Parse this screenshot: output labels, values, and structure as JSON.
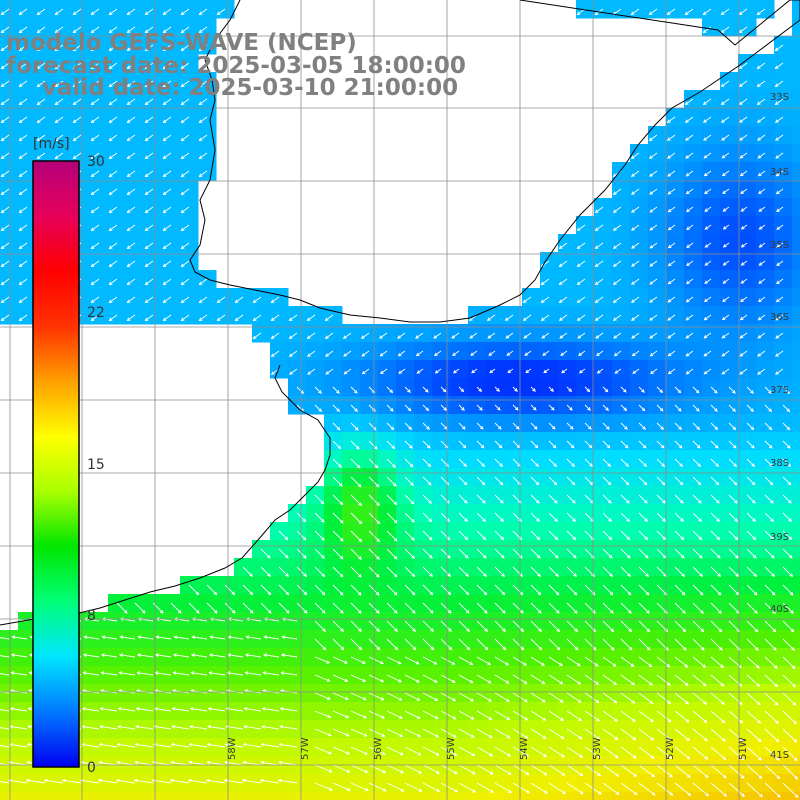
{
  "header": {
    "model": "modelo GEFS-WAVE (NCEP)",
    "forecast": "forecast date: 2025-03-05 18:00:00",
    "valid": "valid date: 2025-03-10 21:00:00"
  },
  "colorbar": {
    "unit": "[m/s]",
    "ticks": [
      {
        "label": "30",
        "value": 30
      },
      {
        "label": "22",
        "value": 22
      },
      {
        "label": "15",
        "value": 15
      },
      {
        "label": "8",
        "value": 8
      },
      {
        "label": "0",
        "value": 0
      }
    ],
    "colors": [
      "#0000f0",
      "#0078ff",
      "#00e6ff",
      "#00ff78",
      "#00e600",
      "#aaff00",
      "#ffff00",
      "#ffa000",
      "#ff3200",
      "#ff0000",
      "#e6005a",
      "#b4007a"
    ]
  },
  "lat_labels": [
    "33S",
    "34S",
    "35S",
    "36S",
    "37S",
    "38S",
    "39S",
    "40S",
    "41S"
  ],
  "lon_labels": [
    "58W",
    "57W",
    "56W",
    "55W",
    "54W",
    "53W",
    "52W",
    "51W"
  ],
  "field": {
    "quantity": "wind speed",
    "units": "m/s",
    "palette_ocean_low": "#0a3cf0",
    "palette_ocean_high": "#e8f000",
    "land_color": "#ffffff",
    "grid_color": "#808080",
    "coast_color": "#000000",
    "arrow_color": "#ffffff"
  }
}
